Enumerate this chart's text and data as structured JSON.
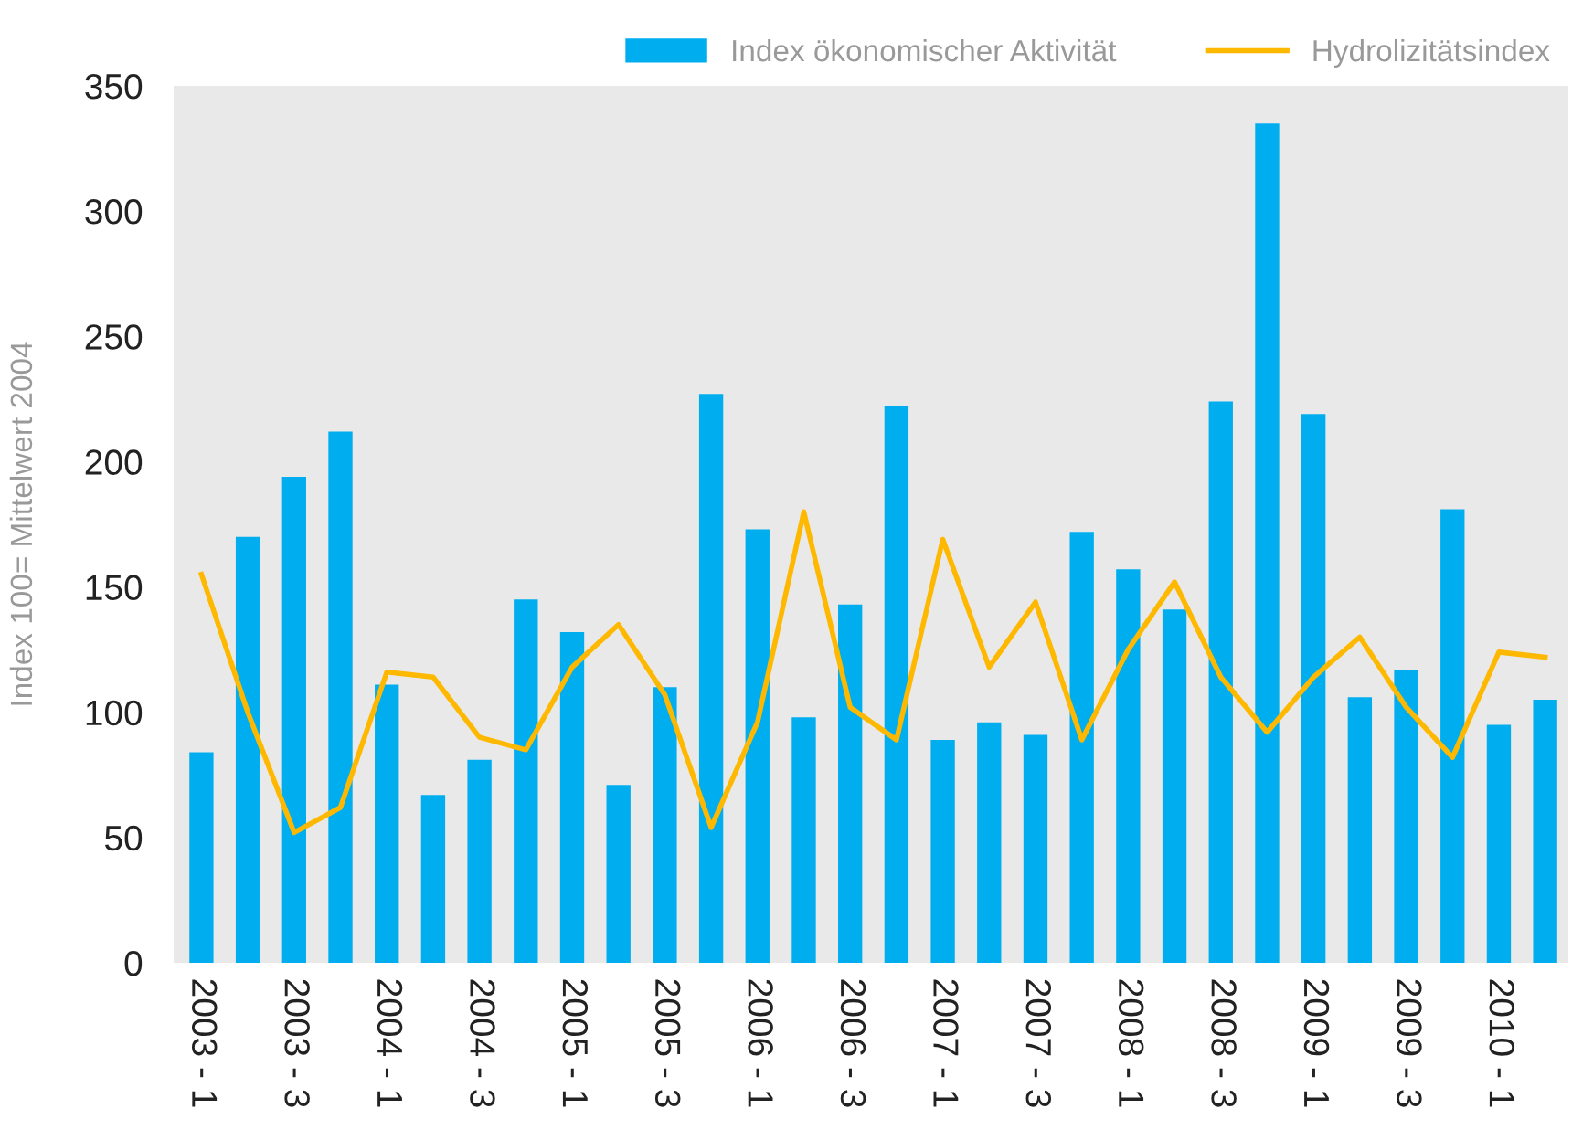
{
  "chart_data": {
    "type": "bar",
    "ylabel": "Index 100= Mittelwert 2004",
    "categories": [
      "2003 - 1",
      null,
      "2003 - 3",
      null,
      "2004 - 1",
      null,
      "2004 - 3",
      null,
      "2005 - 1",
      null,
      "2005 - 3",
      null,
      "2006 - 1",
      null,
      "2006 - 3",
      null,
      "2007 - 1",
      null,
      "2007 - 3",
      null,
      "2008 - 1",
      null,
      "2008 - 3",
      null,
      "2009 - 1",
      null,
      "2009 - 3",
      null,
      "2010 - 1",
      null
    ],
    "series": [
      {
        "name": "Index ökonomischer Aktivität",
        "color": "#00aeef",
        "values": [
          84,
          170,
          194,
          212,
          111,
          67,
          81,
          145,
          132,
          71,
          110,
          227,
          173,
          98,
          143,
          222,
          89,
          96,
          91,
          172,
          157,
          141,
          224,
          335,
          219,
          106,
          117,
          181,
          95,
          105
        ]
      },
      {
        "name": "Hydrolizitätsindex",
        "type": "line",
        "color": "#ffb800",
        "values": [
          155,
          100,
          52,
          62,
          116,
          114,
          90,
          85,
          118,
          135,
          107,
          54,
          96,
          180,
          102,
          89,
          169,
          118,
          144,
          89,
          125,
          152,
          114,
          92,
          114,
          130,
          102,
          82,
          124,
          122
        ]
      }
    ],
    "ylim": [
      0,
      350
    ],
    "yticks": [
      0,
      50,
      100,
      150,
      200,
      250,
      300,
      350
    ],
    "grid": false,
    "legend": "top right"
  }
}
